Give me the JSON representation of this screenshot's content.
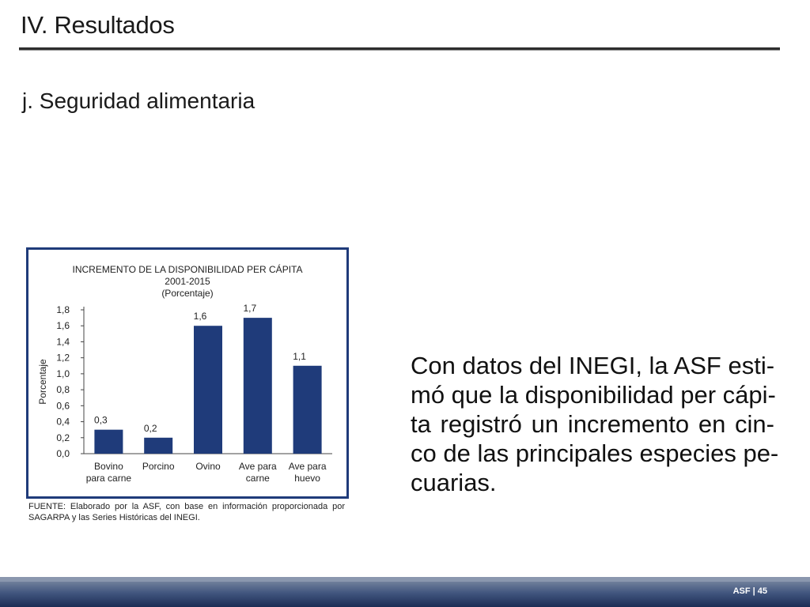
{
  "header": {
    "section_title": "IV. Resultados",
    "subtitle": "j. Seguridad alimentaria"
  },
  "chart_data": {
    "type": "bar",
    "title_lines": [
      "INCREMENTO DE LA DISPONIBILIDAD PER CÁPITA",
      "2001-2015",
      "(Porcentaje)"
    ],
    "ylabel": "Porcentaje",
    "xlabel": "",
    "categories": [
      "Bovino\npara carne",
      "Porcino",
      "Ovino",
      "Ave para\ncarne",
      "Ave para\nhuevo"
    ],
    "values": [
      0.3,
      0.2,
      1.6,
      1.7,
      1.1
    ],
    "value_labels": [
      "0,3",
      "0,2",
      "1,6",
      "1,7",
      "1,1"
    ],
    "ylim": [
      0,
      1.8
    ],
    "yticks": [
      0.0,
      0.2,
      0.4,
      0.6,
      0.8,
      1.0,
      1.2,
      1.4,
      1.6,
      1.8
    ],
    "ytick_labels": [
      "0,0",
      "0,2",
      "0,4",
      "0,6",
      "0,8",
      "1,0",
      "1,2",
      "1,4",
      "1,6",
      "1,8"
    ],
    "bar_color": "#1f3b7a",
    "grid": false,
    "legend": "none"
  },
  "source_note": "FUENTE: Elaborado por la ASF, con base en información proporcionada por SAGARPA y las Series Históricas del INEGI.",
  "body": {
    "lines": [
      "Con datos del INEGI, la ASF esti-",
      "mó que la disponibilidad per cápi-",
      "ta registró un incremento en cin-",
      "co de las principales especies pe-",
      "cuarias."
    ]
  },
  "footer": {
    "label": "ASF | 45",
    "colors": {
      "bar": "#2b3f6b",
      "accent": "#1f3b7a"
    }
  }
}
